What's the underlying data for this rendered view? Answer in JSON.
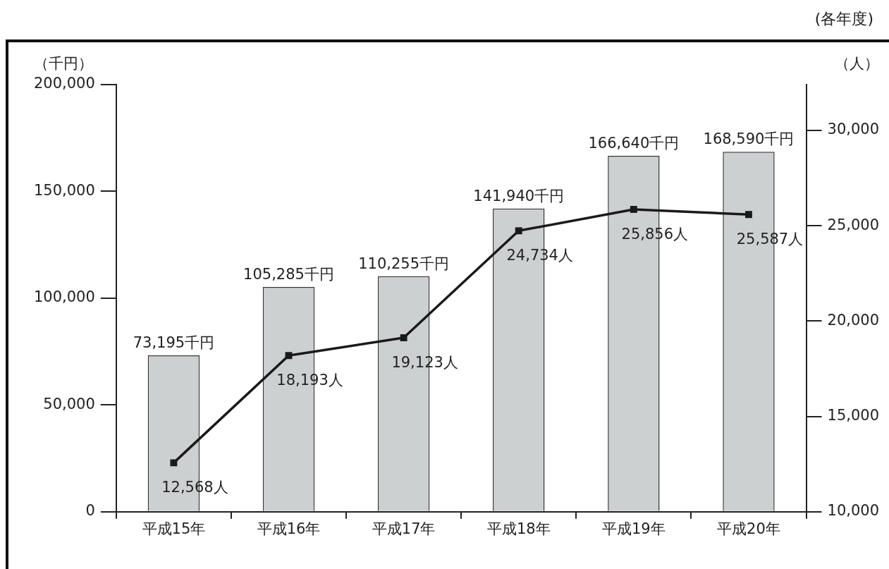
{
  "chart_data": {
    "type": "bar",
    "categories": [
      "平成15年",
      "平成16年",
      "平成17年",
      "平成18年",
      "平成19年",
      "平成20年"
    ],
    "ylabel": "（千円）",
    "y2label": "（人）",
    "annotations": [
      "(各年度)"
    ],
    "ylim": [
      0,
      200000
    ],
    "yticks": [
      {
        "value": 0,
        "label": "0"
      },
      {
        "value": 50000,
        "label": "50,000"
      },
      {
        "value": 100000,
        "label": "100,000"
      },
      {
        "value": 150000,
        "label": "150,000"
      },
      {
        "value": 200000,
        "label": "200,000"
      }
    ],
    "y2lim": [
      10000,
      32400
    ],
    "y2ticks": [
      {
        "value": 10000,
        "label": "10,000"
      },
      {
        "value": 15000,
        "label": "15,000"
      },
      {
        "value": 20000,
        "label": "20,000"
      },
      {
        "value": 25000,
        "label": "25,000"
      },
      {
        "value": 30000,
        "label": "30,000"
      }
    ],
    "grid": false,
    "legend": false,
    "series": [
      {
        "color": "#cdd0d1",
        "values": [
          73195,
          105285,
          110255,
          141940,
          166640,
          168590
        ],
        "value_labels": [
          "73,195千円",
          "105,285千円",
          "110,255千円",
          "141,940千円",
          "166,640千円",
          "168,590千円"
        ]
      },
      {
        "type": "line",
        "axis": "y2",
        "color": "#1a1a1a",
        "marker": "square",
        "line_style": "solid",
        "values": [
          12568,
          18193,
          19123,
          24734,
          25856,
          25587
        ],
        "value_labels": [
          "12,568人",
          "18,193人",
          "19,123人",
          "24,734人",
          "25,856人",
          "25,587人"
        ]
      }
    ]
  }
}
